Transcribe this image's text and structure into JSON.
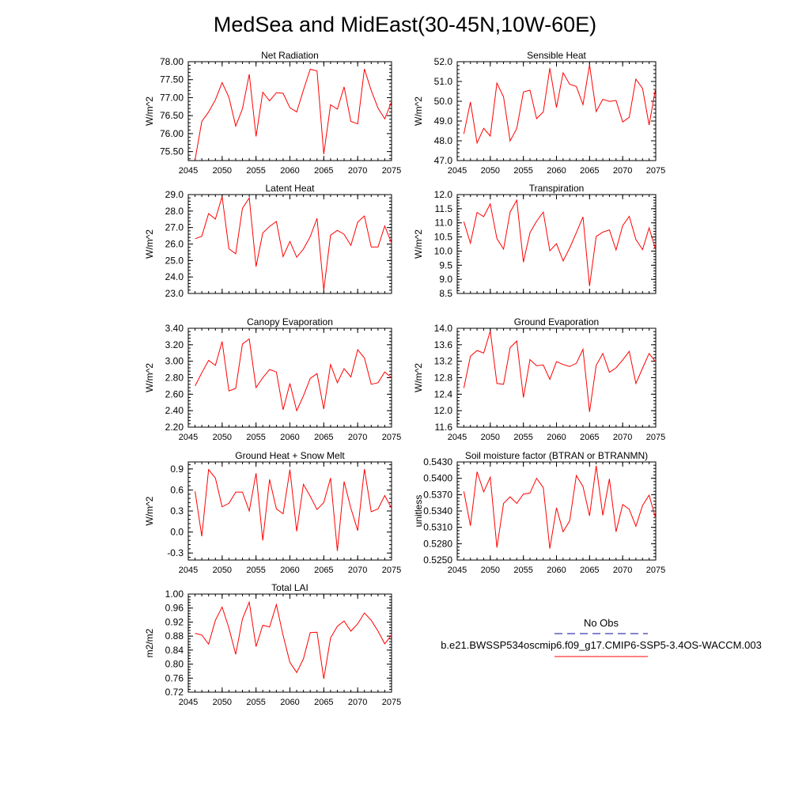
{
  "figure_title": "MedSea and MidEast(30-45N,10W-60E)",
  "legend": {
    "obs_label": "No Obs",
    "model_label": "b.e21.BWSSP534oscmip6.f09_g17.CMIP6-SSP5-3.4OS-WACCM.003",
    "obs_line_color": "#3b3bb5",
    "model_line_color": "#ff0000"
  },
  "chart_data": [
    {
      "type": "line",
      "title": "Net Radiation",
      "ylabel": "W/m^2",
      "xlim": [
        2045,
        2075
      ],
      "ylim": [
        75.25,
        78.0
      ],
      "xticks": [
        2045,
        2050,
        2055,
        2060,
        2065,
        2070,
        2075
      ],
      "yticks": [
        75.5,
        76.0,
        76.5,
        77.0,
        77.5,
        78.0
      ],
      "ytick_labels": [
        "75.50",
        "76.00",
        "76.50",
        "77.00",
        "77.50",
        "78.00"
      ],
      "show_xtick_labels": true,
      "color": "#ff0000",
      "x": [
        2046,
        2047,
        2048,
        2049,
        2050,
        2051,
        2052,
        2053,
        2054,
        2055,
        2056,
        2057,
        2058,
        2059,
        2060,
        2061,
        2062,
        2063,
        2064,
        2065,
        2066,
        2067,
        2068,
        2069,
        2070,
        2071,
        2072,
        2073,
        2074,
        2075
      ],
      "values": [
        75.27,
        76.34,
        76.6,
        76.94,
        77.42,
        77.01,
        76.21,
        76.69,
        77.65,
        75.92,
        77.15,
        76.91,
        77.14,
        77.12,
        76.72,
        76.6,
        77.21,
        77.79,
        77.74,
        75.43,
        76.8,
        76.68,
        77.3,
        76.34,
        76.27,
        77.8,
        77.2,
        76.71,
        76.41,
        76.89
      ]
    },
    {
      "type": "line",
      "title": "Sensible Heat",
      "ylabel": "W/m^2",
      "xlim": [
        2045,
        2075
      ],
      "ylim": [
        47.0,
        52.0
      ],
      "xticks": [
        2045,
        2050,
        2055,
        2060,
        2065,
        2070,
        2075
      ],
      "yticks": [
        47.0,
        48.0,
        49.0,
        50.0,
        51.0,
        52.0
      ],
      "ytick_labels": [
        "47.0",
        "48.0",
        "49.0",
        "50.0",
        "51.0",
        "52.0"
      ],
      "show_xtick_labels": true,
      "color": "#ff0000",
      "x": [
        2046,
        2047,
        2048,
        2049,
        2050,
        2051,
        2052,
        2053,
        2054,
        2055,
        2056,
        2057,
        2058,
        2059,
        2060,
        2061,
        2062,
        2063,
        2064,
        2065,
        2066,
        2067,
        2068,
        2069,
        2070,
        2071,
        2072,
        2073,
        2074,
        2075
      ],
      "values": [
        48.35,
        49.96,
        47.89,
        48.63,
        48.24,
        50.92,
        50.21,
        47.99,
        48.62,
        50.47,
        50.56,
        49.12,
        49.46,
        51.67,
        49.68,
        51.44,
        50.86,
        50.75,
        49.83,
        51.84,
        49.48,
        50.1,
        49.99,
        50.04,
        48.95,
        49.19,
        51.12,
        50.65,
        48.8,
        50.7
      ]
    },
    {
      "type": "line",
      "title": "Latent Heat",
      "ylabel": "W/m^2",
      "xlim": [
        2045,
        2075
      ],
      "ylim": [
        23.0,
        29.0
      ],
      "xticks": [
        2045,
        2050,
        2055,
        2060,
        2065,
        2070,
        2075
      ],
      "yticks": [
        23.0,
        24.0,
        25.0,
        26.0,
        27.0,
        28.0,
        29.0
      ],
      "ytick_labels": [
        "23.0",
        "24.0",
        "25.0",
        "26.0",
        "27.0",
        "28.0",
        "29.0"
      ],
      "show_xtick_labels": false,
      "color": "#ff0000",
      "x": [
        2046,
        2047,
        2048,
        2049,
        2050,
        2051,
        2052,
        2053,
        2054,
        2055,
        2056,
        2057,
        2058,
        2059,
        2060,
        2061,
        2062,
        2063,
        2064,
        2065,
        2066,
        2067,
        2068,
        2069,
        2070,
        2071,
        2072,
        2073,
        2074,
        2075
      ],
      "values": [
        26.32,
        26.47,
        27.85,
        27.51,
        28.88,
        25.71,
        25.41,
        28.17,
        28.8,
        24.63,
        26.67,
        27.07,
        27.37,
        25.23,
        26.16,
        25.2,
        25.7,
        26.45,
        27.56,
        23.2,
        26.54,
        26.83,
        26.59,
        25.92,
        27.33,
        27.7,
        25.82,
        25.82,
        27.1,
        26.06
      ]
    },
    {
      "type": "line",
      "title": "Transpiration",
      "ylabel": "W/m^2",
      "xlim": [
        2045,
        2075
      ],
      "ylim": [
        8.5,
        12.0
      ],
      "xticks": [
        2045,
        2050,
        2055,
        2060,
        2065,
        2070,
        2075
      ],
      "yticks": [
        8.5,
        9.0,
        9.5,
        10.0,
        10.5,
        11.0,
        11.5,
        12.0
      ],
      "ytick_labels": [
        "8.5",
        "9.0",
        "9.5",
        "10.0",
        "10.5",
        "11.0",
        "11.5",
        "12.0"
      ],
      "show_xtick_labels": false,
      "color": "#ff0000",
      "x": [
        2046,
        2047,
        2048,
        2049,
        2050,
        2051,
        2052,
        2053,
        2054,
        2055,
        2056,
        2057,
        2058,
        2059,
        2060,
        2061,
        2062,
        2063,
        2064,
        2065,
        2066,
        2067,
        2068,
        2069,
        2070,
        2071,
        2072,
        2073,
        2074,
        2075
      ],
      "values": [
        11.04,
        10.28,
        11.37,
        11.22,
        11.67,
        10.44,
        10.07,
        11.38,
        11.8,
        9.61,
        10.65,
        11.06,
        11.38,
        10.01,
        10.26,
        9.65,
        10.11,
        10.65,
        11.21,
        8.76,
        10.52,
        10.67,
        10.75,
        10.04,
        10.9,
        11.23,
        10.41,
        10.05,
        10.82,
        10.03
      ]
    },
    {
      "type": "line",
      "title": "Canopy Evaporation",
      "ylabel": "W/m^2",
      "xlim": [
        2045,
        2075
      ],
      "ylim": [
        2.2,
        3.4
      ],
      "xticks": [
        2045,
        2050,
        2055,
        2060,
        2065,
        2070,
        2075
      ],
      "yticks": [
        2.2,
        2.4,
        2.6,
        2.8,
        3.0,
        3.2,
        3.4
      ],
      "ytick_labels": [
        "2.20",
        "2.40",
        "2.60",
        "2.80",
        "3.00",
        "3.20",
        "3.40"
      ],
      "show_xtick_labels": true,
      "color": "#ff0000",
      "x": [
        2046,
        2047,
        2048,
        2049,
        2050,
        2051,
        2052,
        2053,
        2054,
        2055,
        2056,
        2057,
        2058,
        2059,
        2060,
        2061,
        2062,
        2063,
        2064,
        2065,
        2066,
        2067,
        2068,
        2069,
        2070,
        2071,
        2072,
        2073,
        2074,
        2075
      ],
      "values": [
        2.7,
        2.86,
        3.01,
        2.95,
        3.24,
        2.64,
        2.67,
        3.21,
        3.27,
        2.68,
        2.8,
        2.9,
        2.87,
        2.41,
        2.73,
        2.4,
        2.58,
        2.79,
        2.85,
        2.42,
        2.96,
        2.74,
        2.91,
        2.81,
        3.14,
        3.04,
        2.72,
        2.74,
        2.87,
        2.8
      ]
    },
    {
      "type": "line",
      "title": "Ground Evaporation",
      "ylabel": "W/m^2",
      "xlim": [
        2045,
        2075
      ],
      "ylim": [
        11.6,
        14.0
      ],
      "xticks": [
        2045,
        2050,
        2055,
        2060,
        2065,
        2070,
        2075
      ],
      "yticks": [
        11.6,
        12.0,
        12.4,
        12.8,
        13.2,
        13.6,
        14.0
      ],
      "ytick_labels": [
        "11.6",
        "12.0",
        "12.4",
        "12.8",
        "13.2",
        "13.6",
        "14.0"
      ],
      "show_xtick_labels": true,
      "color": "#ff0000",
      "x": [
        2046,
        2047,
        2048,
        2049,
        2050,
        2051,
        2052,
        2053,
        2054,
        2055,
        2056,
        2057,
        2058,
        2059,
        2060,
        2061,
        2062,
        2063,
        2064,
        2065,
        2066,
        2067,
        2068,
        2069,
        2070,
        2071,
        2072,
        2073,
        2074,
        2075
      ],
      "values": [
        12.55,
        13.32,
        13.46,
        13.4,
        13.93,
        12.66,
        12.64,
        13.53,
        13.69,
        12.32,
        13.24,
        13.09,
        13.11,
        12.76,
        13.19,
        13.12,
        13.07,
        13.15,
        13.49,
        11.97,
        13.1,
        13.39,
        12.93,
        13.04,
        13.23,
        13.44,
        12.66,
        13.03,
        13.39,
        13.18
      ]
    },
    {
      "type": "line",
      "title": "Ground Heat + Snow Melt",
      "ylabel": "W/m^2",
      "xlim": [
        2045,
        2075
      ],
      "ylim": [
        -0.4,
        1.0
      ],
      "xticks": [
        2045,
        2050,
        2055,
        2060,
        2065,
        2070,
        2075
      ],
      "yticks": [
        -0.3,
        0.0,
        0.3,
        0.6,
        0.9
      ],
      "ytick_labels": [
        "-0.3",
        "0.0",
        "0.3",
        "0.6",
        "0.9"
      ],
      "show_xtick_labels": true,
      "color": "#ff0000",
      "x": [
        2046,
        2047,
        2048,
        2049,
        2050,
        2051,
        2052,
        2053,
        2054,
        2055,
        2056,
        2057,
        2058,
        2059,
        2060,
        2061,
        2062,
        2063,
        2064,
        2065,
        2066,
        2067,
        2068,
        2069,
        2070,
        2071,
        2072,
        2073,
        2074,
        2075
      ],
      "values": [
        0.58,
        -0.06,
        0.89,
        0.77,
        0.36,
        0.41,
        0.57,
        0.57,
        0.3,
        0.84,
        -0.12,
        0.75,
        0.33,
        0.26,
        0.89,
        0.01,
        0.68,
        0.51,
        0.32,
        0.42,
        0.77,
        -0.27,
        0.72,
        0.34,
        0.02,
        0.9,
        0.29,
        0.33,
        0.52,
        0.34
      ]
    },
    {
      "type": "line",
      "title": "Soil moisture factor (BTRAN or BTRANMN)",
      "ylabel": "unitless",
      "xlim": [
        2045,
        2075
      ],
      "ylim": [
        0.525,
        0.543
      ],
      "xticks": [
        2045,
        2050,
        2055,
        2060,
        2065,
        2070,
        2075
      ],
      "yticks": [
        0.525,
        0.528,
        0.531,
        0.534,
        0.537,
        0.54,
        0.543
      ],
      "ytick_labels": [
        "0.5250",
        "0.5280",
        "0.5310",
        "0.5340",
        "0.5370",
        "0.5400",
        "0.5430"
      ],
      "show_xtick_labels": true,
      "color": "#ff0000",
      "x": [
        2046,
        2047,
        2048,
        2049,
        2050,
        2051,
        2052,
        2053,
        2054,
        2055,
        2056,
        2057,
        2058,
        2059,
        2060,
        2061,
        2062,
        2063,
        2064,
        2065,
        2066,
        2067,
        2068,
        2069,
        2070,
        2071,
        2072,
        2073,
        2074,
        2075
      ],
      "values": [
        0.5376,
        0.5313,
        0.5412,
        0.5375,
        0.5402,
        0.5273,
        0.5354,
        0.5366,
        0.5354,
        0.5371,
        0.5373,
        0.54,
        0.5383,
        0.5271,
        0.5346,
        0.5302,
        0.5322,
        0.5405,
        0.5385,
        0.5331,
        0.5423,
        0.5332,
        0.5399,
        0.5302,
        0.5352,
        0.5343,
        0.5312,
        0.535,
        0.5369,
        0.5326
      ]
    },
    {
      "type": "line",
      "title": "Total LAI",
      "ylabel": "m2/m2",
      "xlim": [
        2045,
        2075
      ],
      "ylim": [
        0.72,
        1.0
      ],
      "xticks": [
        2045,
        2050,
        2055,
        2060,
        2065,
        2070,
        2075
      ],
      "yticks": [
        0.72,
        0.76,
        0.8,
        0.84,
        0.88,
        0.92,
        0.96,
        1.0
      ],
      "ytick_labels": [
        "0.72",
        "0.76",
        "0.80",
        "0.84",
        "0.88",
        "0.92",
        "0.96",
        "1.00"
      ],
      "show_xtick_labels": true,
      "color": "#ff0000",
      "x": [
        2046,
        2047,
        2048,
        2049,
        2050,
        2051,
        2052,
        2053,
        2054,
        2055,
        2056,
        2057,
        2058,
        2059,
        2060,
        2061,
        2062,
        2063,
        2064,
        2065,
        2066,
        2067,
        2068,
        2069,
        2070,
        2071,
        2072,
        2073,
        2074,
        2075
      ],
      "values": [
        0.888,
        0.883,
        0.857,
        0.925,
        0.963,
        0.903,
        0.828,
        0.929,
        0.977,
        0.85,
        0.911,
        0.906,
        0.97,
        0.882,
        0.805,
        0.776,
        0.815,
        0.89,
        0.891,
        0.758,
        0.875,
        0.908,
        0.923,
        0.894,
        0.915,
        0.946,
        0.925,
        0.894,
        0.858,
        0.883
      ]
    }
  ]
}
